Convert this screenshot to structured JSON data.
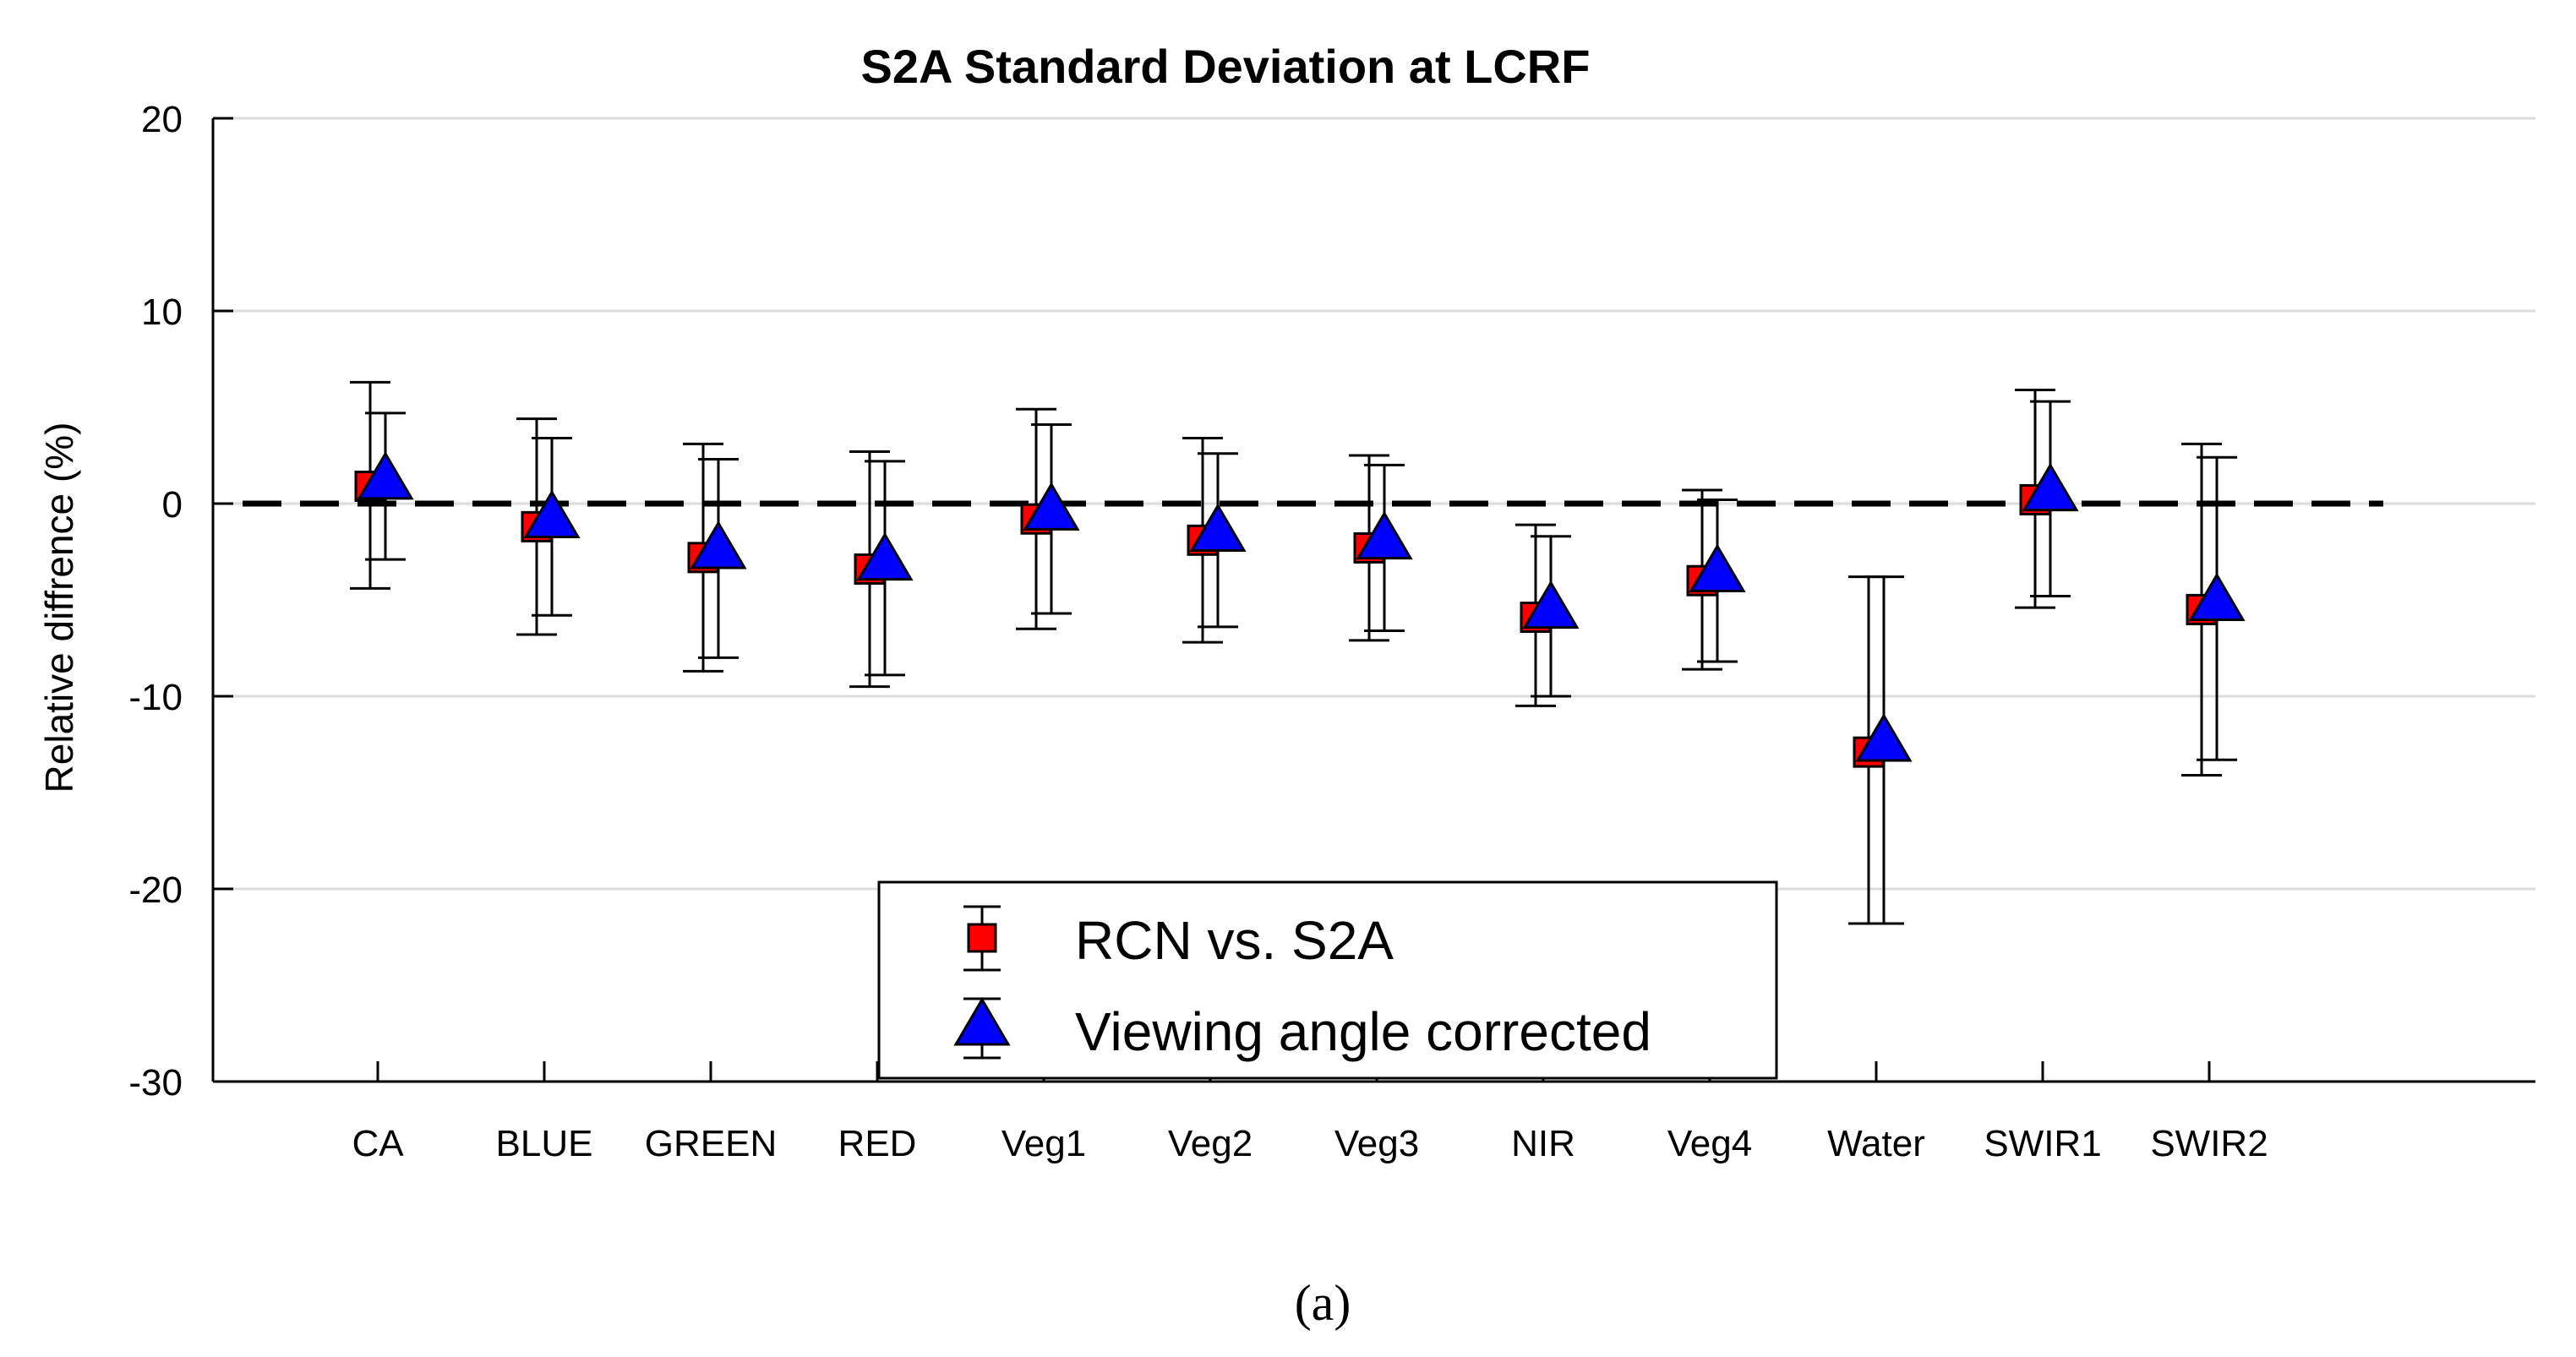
{
  "chart_data": {
    "type": "scatter",
    "title": "S2A Standard Deviation at LCRF",
    "xlabel": "",
    "ylabel": "Relative diffrence (%)",
    "ylim": [
      -30,
      20
    ],
    "yticks": [
      20,
      10,
      0,
      -10,
      -20,
      -30
    ],
    "grid": true,
    "categories": [
      "CA",
      "BLUE",
      "GREEN",
      "RED",
      "Veg1",
      "Veg2",
      "Veg3",
      "NIR",
      "Veg4",
      "Water",
      "SWIR1",
      "SWIR2"
    ],
    "reference_line": 0,
    "legend_position": "bottom-center",
    "series": [
      {
        "name": "RCN vs. S2A",
        "marker": "square",
        "color": "#ff0000",
        "values": [
          0.9,
          -1.2,
          -2.8,
          -3.4,
          -0.8,
          -1.9,
          -2.3,
          -5.9,
          -4.0,
          -12.9,
          0.2,
          -5.5
        ],
        "lower": [
          -4.4,
          -6.8,
          -8.7,
          -9.5,
          -6.5,
          -7.2,
          -7.1,
          -10.5,
          -8.6,
          -21.8,
          -5.4,
          -14.1
        ],
        "upper": [
          6.3,
          4.4,
          3.1,
          2.7,
          4.9,
          3.4,
          2.5,
          -1.1,
          0.7,
          -3.8,
          5.9,
          3.1
        ]
      },
      {
        "name": "Viewing angle corrected",
        "marker": "triangle",
        "color": "#0000ff",
        "values": [
          1.1,
          -0.9,
          -2.5,
          -3.1,
          -0.5,
          -1.6,
          -2.0,
          -5.6,
          -3.7,
          -12.5,
          0.5,
          -5.2
        ],
        "lower": [
          -2.9,
          -5.8,
          -8.0,
          -8.9,
          -5.7,
          -6.4,
          -6.6,
          -10.0,
          -8.2,
          -21.8,
          -4.8,
          -13.3
        ],
        "upper": [
          4.7,
          3.4,
          2.3,
          2.2,
          4.1,
          2.6,
          2.0,
          -1.7,
          0.2,
          -3.8,
          5.3,
          2.4
        ]
      }
    ],
    "caption": "(a)"
  }
}
